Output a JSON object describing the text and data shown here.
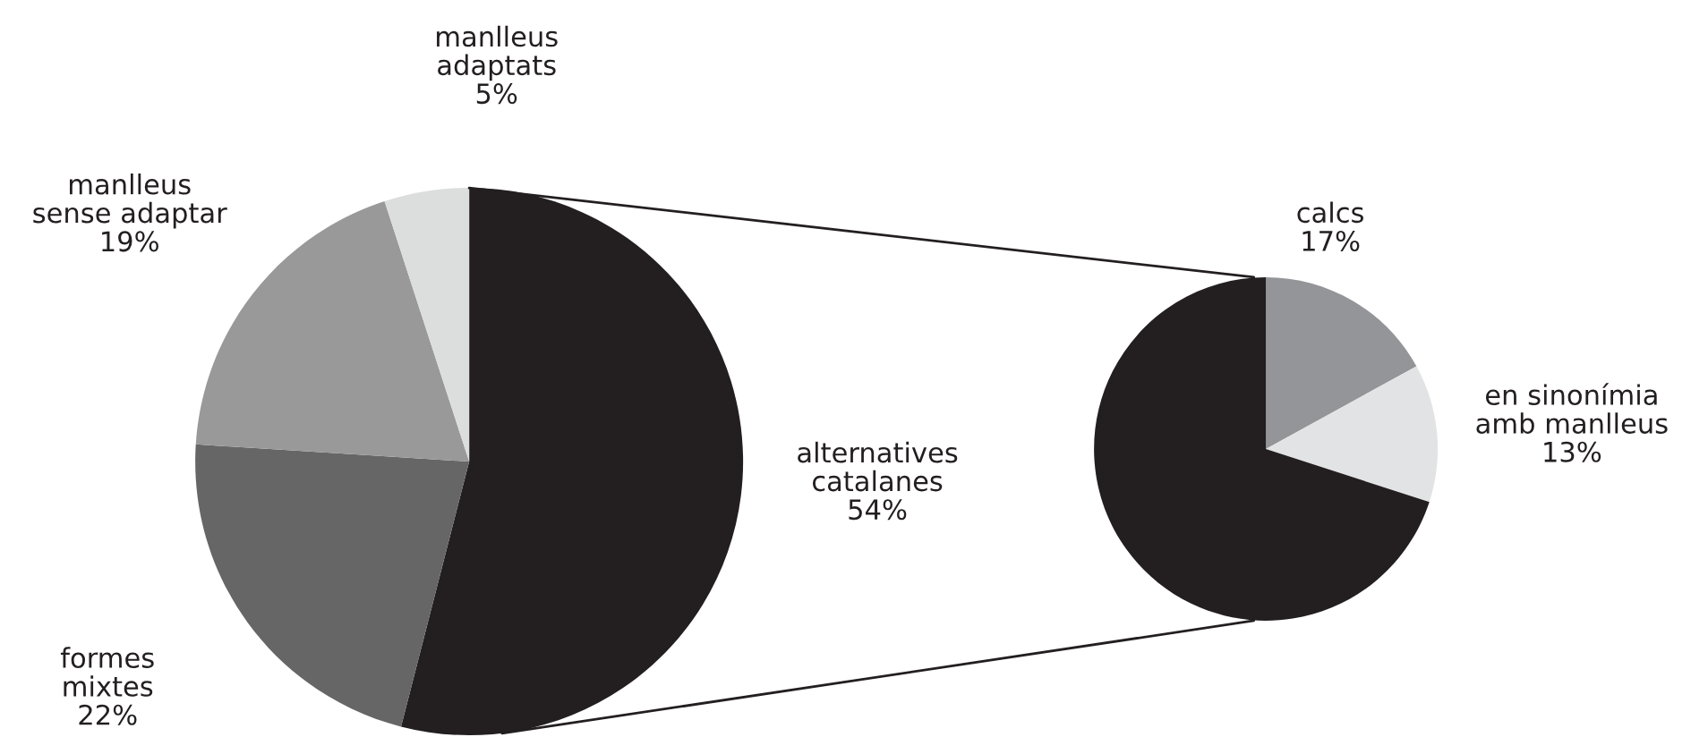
{
  "chart_data": [
    {
      "type": "pie",
      "categories": [
        "alternatives\ncatalanes",
        "formes\nmixtes",
        "manlleus\nsense adaptar",
        "manlleus\nadaptats"
      ],
      "values": [
        54,
        22,
        19,
        5
      ],
      "value_labels": [
        "54%",
        "22%",
        "19%",
        "5%"
      ],
      "colors": [
        "#231f20",
        "#666666",
        "#999999",
        "#dcdddd"
      ]
    },
    {
      "type": "pie",
      "categories": [
        "calcs",
        "en sinonímia\namb manlleus",
        null
      ],
      "values": [
        17,
        13,
        70
      ],
      "value_labels": [
        "17%",
        "13%",
        null
      ],
      "colors": [
        "#939598",
        "#e2e3e4",
        "#231f20"
      ]
    }
  ]
}
